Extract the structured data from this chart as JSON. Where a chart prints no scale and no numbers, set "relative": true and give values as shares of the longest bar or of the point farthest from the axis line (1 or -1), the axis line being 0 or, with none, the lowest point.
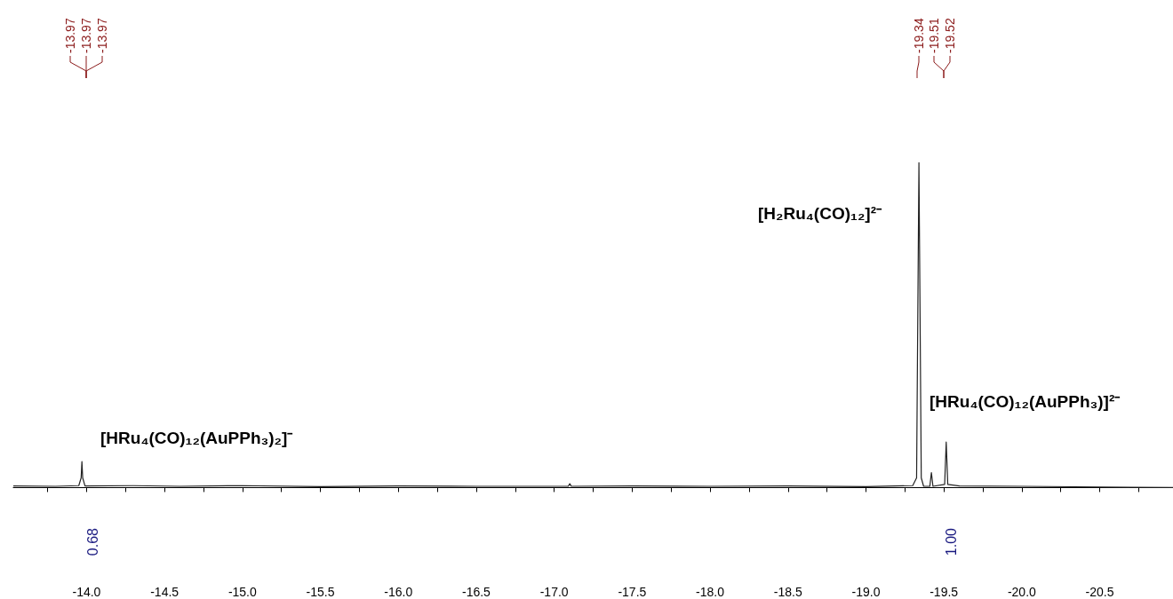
{
  "chart_data": {
    "type": "line",
    "relative": true,
    "tick_labels": "x",
    "grid": false,
    "marker": "none",
    "line_style": "solid",
    "xlim": [
      -13.53,
      -20.97
    ],
    "xticks": [
      {
        "value": -13.75,
        "label": null
      },
      {
        "value": -14.0,
        "label": "-14.0"
      },
      {
        "value": -14.25,
        "label": null
      },
      {
        "value": -14.5,
        "label": "-14.5"
      },
      {
        "value": -14.75,
        "label": null
      },
      {
        "value": -15.0,
        "label": "-15.0"
      },
      {
        "value": -15.25,
        "label": null
      },
      {
        "value": -15.5,
        "label": "-15.5"
      },
      {
        "value": -15.75,
        "label": null
      },
      {
        "value": -16.0,
        "label": "-16.0"
      },
      {
        "value": -16.25,
        "label": null
      },
      {
        "value": -16.5,
        "label": "-16.5"
      },
      {
        "value": -16.75,
        "label": null
      },
      {
        "value": -17.0,
        "label": "-17.0"
      },
      {
        "value": -17.25,
        "label": null
      },
      {
        "value": -17.5,
        "label": "-17.5"
      },
      {
        "value": -17.75,
        "label": null
      },
      {
        "value": -18.0,
        "label": "-18.0"
      },
      {
        "value": -18.25,
        "label": null
      },
      {
        "value": -18.5,
        "label": "-18.5"
      },
      {
        "value": -18.75,
        "label": null
      },
      {
        "value": -19.0,
        "label": "-19.0"
      },
      {
        "value": -19.25,
        "label": null
      },
      {
        "value": -19.5,
        "label": "-19.5"
      },
      {
        "value": -19.75,
        "label": null
      },
      {
        "value": -20.0,
        "label": "-20.0"
      },
      {
        "value": -20.25,
        "label": null
      },
      {
        "value": -20.5,
        "label": "-20.5"
      },
      {
        "value": -20.75,
        "label": null
      }
    ],
    "series": [
      {
        "color": "#222222",
        "x": [
          -13.53,
          -13.8,
          -13.95,
          -13.965,
          -13.97,
          -13.975,
          -13.99,
          -14.3,
          -14.6,
          -15.0,
          -15.5,
          -16.0,
          -16.5,
          -17.09,
          -17.1,
          -17.11,
          -17.5,
          -18.0,
          -18.5,
          -19.0,
          -19.3,
          -19.325,
          -19.34,
          -19.355,
          -19.37,
          -19.41,
          -19.42,
          -19.43,
          -19.505,
          -19.515,
          -19.525,
          -19.6,
          -20.0,
          -20.5,
          -20.97
        ],
        "values": [
          0.005,
          0.004,
          0.006,
          0.03,
          0.08,
          0.03,
          0.005,
          0.006,
          0.004,
          0.006,
          0.003,
          0.005,
          0.004,
          0.004,
          0.012,
          0.004,
          0.005,
          0.004,
          0.005,
          0.003,
          0.006,
          0.03,
          1.0,
          0.03,
          0.004,
          0.004,
          0.046,
          0.004,
          0.01,
          0.14,
          0.01,
          0.005,
          0.004,
          0.002,
          0.0
        ]
      }
    ],
    "annotations": [
      "-13.97",
      "-13.97",
      "-13.97",
      "-19.34",
      "-19.51",
      "-19.52",
      "0.68",
      "1.00",
      "[HRu₄(CO)₁₂(AuPPh₃)₂]⁻",
      "[H₂Ru₄(CO)₁₂]²⁻",
      "[HRu₄(CO)₁₂(AuPPh₃)]²⁻"
    ]
  }
}
